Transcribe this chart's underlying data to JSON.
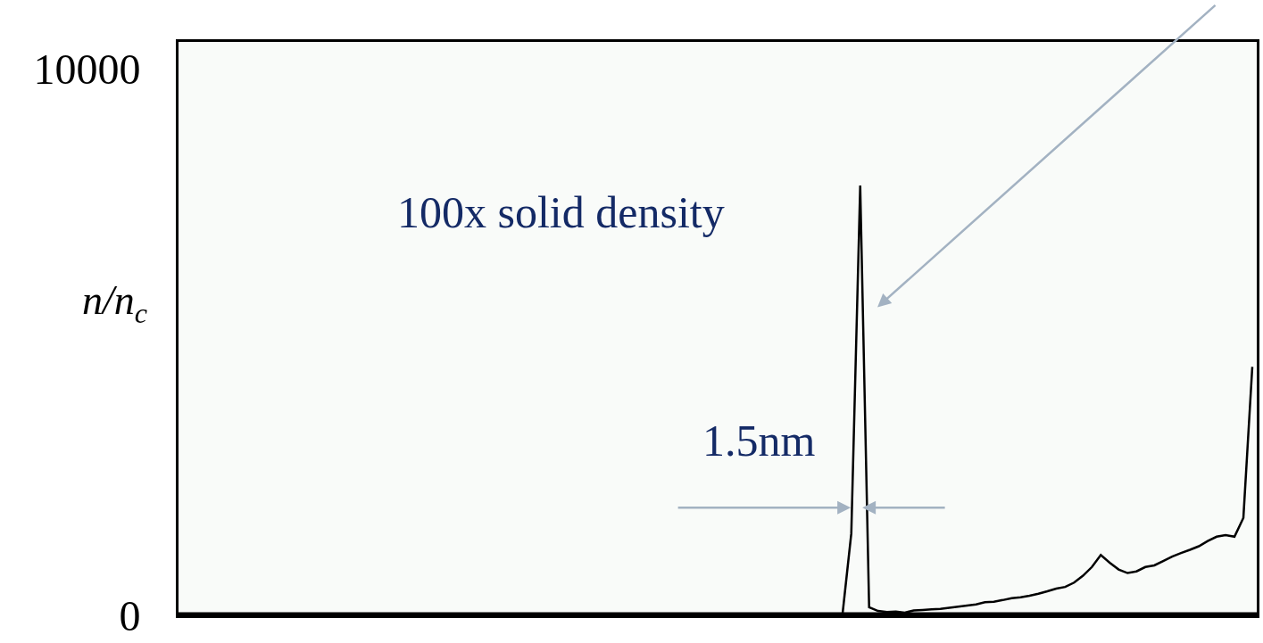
{
  "chart_data": {
    "type": "line",
    "ylabel": "n/n$_{c}$",
    "categories": [
      null,
      null,
      null,
      null,
      null,
      null,
      null,
      null,
      null,
      null,
      null,
      null,
      null,
      null,
      null,
      null,
      null,
      null,
      null,
      null,
      null,
      null,
      null,
      null,
      null,
      null,
      null,
      null,
      null,
      null,
      null,
      null,
      null,
      null,
      null,
      null,
      null,
      null,
      null,
      null,
      null,
      null,
      null,
      null,
      null,
      null,
      null,
      null,
      null,
      null,
      null,
      null,
      null,
      null,
      null,
      null,
      null,
      null,
      null,
      null,
      null,
      null,
      null,
      null,
      null,
      null,
      null,
      null,
      null,
      null,
      null,
      null,
      null,
      null,
      null,
      null,
      null,
      null,
      null,
      null,
      null,
      null,
      null,
      null,
      null,
      null,
      null,
      null,
      null,
      null,
      null,
      null,
      null,
      null,
      null,
      null,
      null,
      null,
      null,
      null,
      null,
      null,
      null,
      null,
      null,
      null,
      null,
      null,
      null,
      null,
      null,
      null,
      null,
      null,
      null,
      null,
      null,
      null,
      null,
      null,
      null
    ],
    "series": [
      {
        "color": "#000000",
        "values": [
          0,
          0,
          0,
          0,
          0,
          0,
          0,
          0,
          0,
          0,
          0,
          0,
          0,
          0,
          0,
          0,
          0,
          0,
          0,
          0,
          0,
          0,
          0,
          0,
          0,
          0,
          0,
          0,
          0,
          0,
          0,
          0,
          0,
          0,
          0,
          0,
          0,
          0,
          0,
          0,
          0,
          0,
          0,
          0,
          0,
          0,
          0,
          0,
          0,
          0,
          0,
          0,
          0,
          0,
          0,
          0,
          0,
          0,
          0,
          0,
          0,
          0,
          0,
          0,
          0,
          0,
          0,
          0,
          0,
          0,
          0,
          0,
          0,
          0,
          0,
          1500,
          7870,
          150,
          80,
          60,
          70,
          50,
          90,
          100,
          110,
          120,
          140,
          160,
          180,
          200,
          240,
          250,
          280,
          315,
          330,
          360,
          395,
          440,
          490,
          520,
          600,
          725,
          885,
          1105,
          965,
          840,
          775,
          805,
          885,
          915,
          995,
          1075,
          1140,
          1200,
          1265,
          1360,
          1440,
          1470,
          1440,
          1785,
          4550
        ]
      }
    ],
    "ylim": [
      0,
      10500
    ],
    "yticks": [
      0,
      10000
    ],
    "grid": false,
    "marker": "none",
    "line_style": "solid",
    "annotations": [
      "100x solid density",
      "1.5nm"
    ]
  }
}
